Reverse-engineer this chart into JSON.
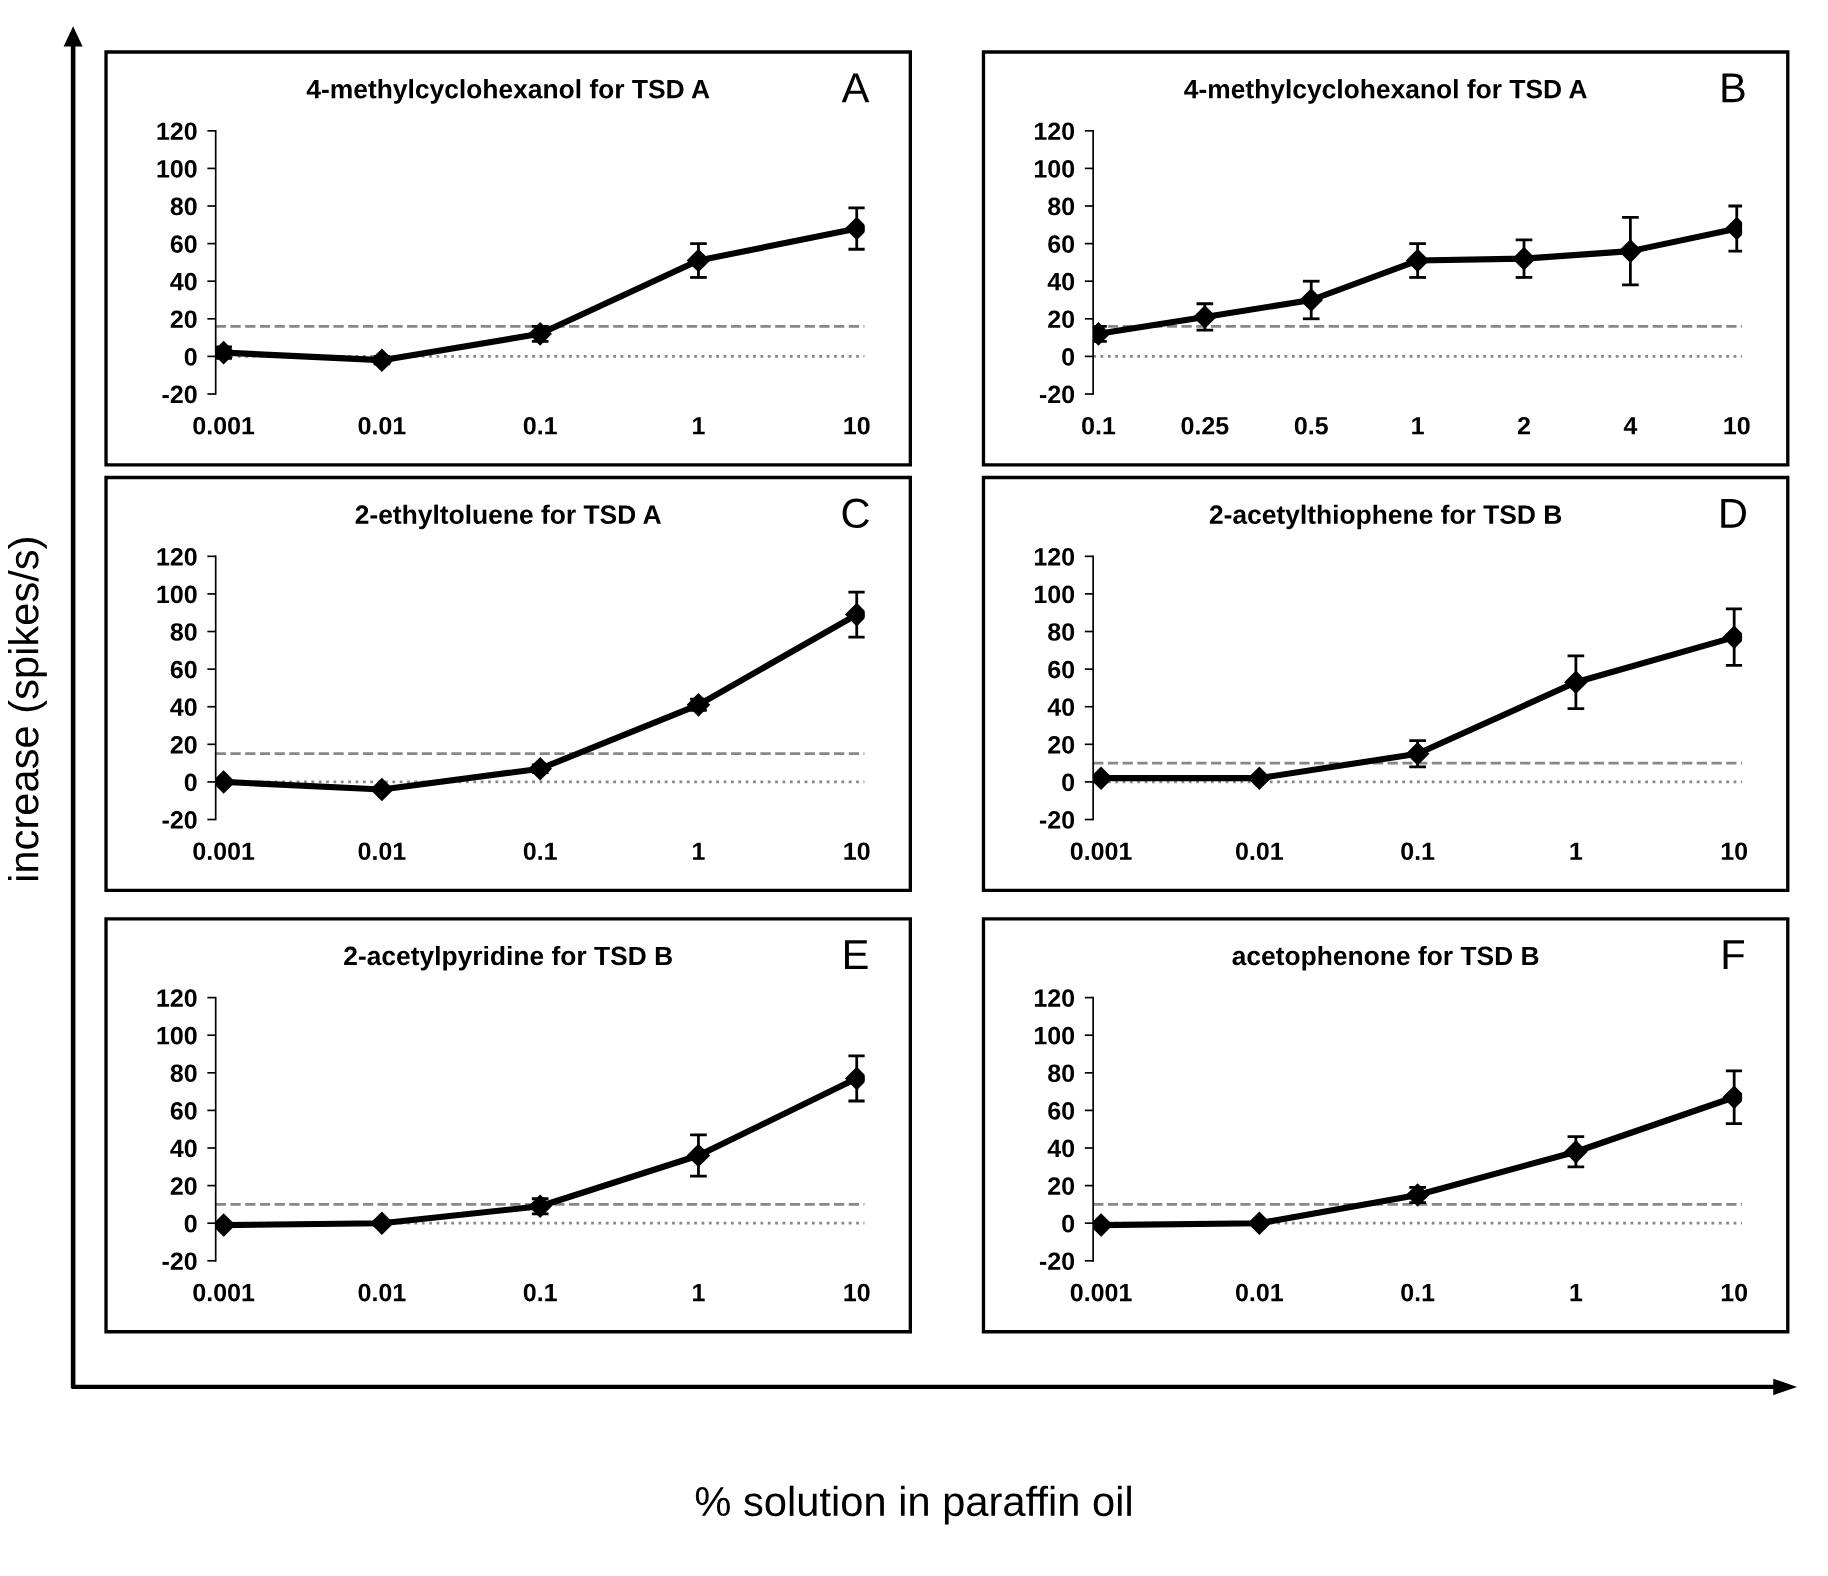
{
  "chart_data": [
    {
      "type": "line",
      "title": "4-methylcyclohexanol for TSD A",
      "annotations": [
        "A"
      ],
      "ylabel": "increase (spikes/s)",
      "categories": [
        "0.001",
        "0.01",
        "0.1",
        "1",
        "10"
      ],
      "series": [
        {
          "color": "#000000",
          "values": [
            2,
            -2,
            12,
            51,
            68
          ],
          "errors": [
            3,
            2,
            4,
            9,
            11
          ]
        }
      ],
      "ylim": [
        -20,
        120
      ],
      "yticks": [
        -20,
        0,
        20,
        40,
        60,
        80,
        100,
        120
      ],
      "ref_lines": [
        {
          "axis": "y",
          "value": 16,
          "line_style": "dashed",
          "color": "#888888"
        },
        {
          "axis": "y",
          "value": 0,
          "line_style": "dotted",
          "color": "#888888"
        }
      ],
      "marker": "diamond",
      "line_style": "solid",
      "grid": false,
      "legend": false
    },
    {
      "type": "line",
      "title": "4-methylcyclohexanol for TSD A",
      "annotations": [
        "B"
      ],
      "categories": [
        "0.1",
        "0.25",
        "0.5",
        "1",
        "2",
        "4",
        "10"
      ],
      "series": [
        {
          "color": "#000000",
          "values": [
            12,
            21,
            30,
            51,
            52,
            56,
            68
          ],
          "errors": [
            4,
            7,
            10,
            9,
            10,
            18,
            12
          ]
        }
      ],
      "ylim": [
        -20,
        120
      ],
      "yticks": [
        -20,
        0,
        20,
        40,
        60,
        80,
        100,
        120
      ],
      "ref_lines": [
        {
          "axis": "y",
          "value": 16,
          "line_style": "dashed",
          "color": "#888888"
        },
        {
          "axis": "y",
          "value": 0,
          "line_style": "dotted",
          "color": "#888888"
        }
      ],
      "marker": "diamond",
      "line_style": "solid",
      "grid": false,
      "legend": false
    },
    {
      "type": "line",
      "title": "2-ethyltoluene for TSD A",
      "annotations": [
        "C"
      ],
      "categories": [
        "0.001",
        "0.01",
        "0.1",
        "1",
        "10"
      ],
      "series": [
        {
          "color": "#000000",
          "values": [
            0,
            -4,
            7,
            41,
            89
          ],
          "errors": [
            null,
            null,
            2,
            3,
            12
          ]
        }
      ],
      "ylim": [
        -20,
        120
      ],
      "yticks": [
        -20,
        0,
        20,
        40,
        60,
        80,
        100,
        120
      ],
      "ref_lines": [
        {
          "axis": "y",
          "value": 15,
          "line_style": "dashed",
          "color": "#888888"
        },
        {
          "axis": "y",
          "value": 0,
          "line_style": "dotted",
          "color": "#888888"
        }
      ],
      "marker": "diamond",
      "line_style": "solid",
      "grid": false,
      "legend": false
    },
    {
      "type": "line",
      "title": "2-acetylthiophene for TSD B",
      "annotations": [
        "D"
      ],
      "categories": [
        "0.001",
        "0.01",
        "0.1",
        "1",
        "10"
      ],
      "series": [
        {
          "color": "#000000",
          "values": [
            2,
            2,
            15,
            53,
            77
          ],
          "errors": [
            null,
            null,
            7,
            14,
            15
          ]
        }
      ],
      "ylim": [
        -20,
        120
      ],
      "yticks": [
        -20,
        0,
        20,
        40,
        60,
        80,
        100,
        120
      ],
      "ref_lines": [
        {
          "axis": "y",
          "value": 10,
          "line_style": "dashed",
          "color": "#888888"
        },
        {
          "axis": "y",
          "value": 0,
          "line_style": "dotted",
          "color": "#888888"
        }
      ],
      "marker": "diamond",
      "line_style": "solid",
      "grid": false,
      "legend": false
    },
    {
      "type": "line",
      "title": "2-acetylpyridine for TSD B",
      "annotations": [
        "E"
      ],
      "categories": [
        "0.001",
        "0.01",
        "0.1",
        "1",
        "10"
      ],
      "series": [
        {
          "color": "#000000",
          "values": [
            -1,
            0,
            9,
            36,
            77
          ],
          "errors": [
            null,
            null,
            4,
            11,
            12
          ]
        }
      ],
      "ylim": [
        -20,
        120
      ],
      "yticks": [
        -20,
        0,
        20,
        40,
        60,
        80,
        100,
        120
      ],
      "ref_lines": [
        {
          "axis": "y",
          "value": 10,
          "line_style": "dashed",
          "color": "#888888"
        },
        {
          "axis": "y",
          "value": 0,
          "line_style": "dotted",
          "color": "#888888"
        }
      ],
      "marker": "diamond",
      "line_style": "solid",
      "grid": false,
      "legend": false
    },
    {
      "type": "line",
      "title": "acetophenone for TSD B",
      "annotations": [
        "F"
      ],
      "xlabel": "% solution in paraffin oil",
      "categories": [
        "0.001",
        "0.01",
        "0.1",
        "1",
        "10"
      ],
      "series": [
        {
          "color": "#000000",
          "values": [
            -1,
            0,
            15,
            38,
            67
          ],
          "errors": [
            null,
            null,
            4,
            8,
            14
          ]
        }
      ],
      "ylim": [
        -20,
        120
      ],
      "yticks": [
        -20,
        0,
        20,
        40,
        60,
        80,
        100,
        120
      ],
      "ref_lines": [
        {
          "axis": "y",
          "value": 10,
          "line_style": "dashed",
          "color": "#888888"
        },
        {
          "axis": "y",
          "value": 0,
          "line_style": "dotted",
          "color": "#888888"
        }
      ],
      "marker": "diamond",
      "line_style": "solid",
      "grid": false,
      "legend": false
    }
  ]
}
